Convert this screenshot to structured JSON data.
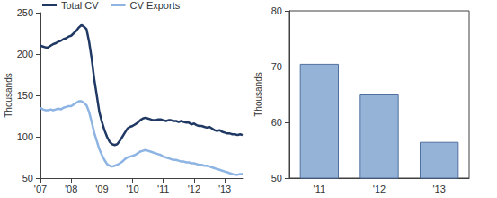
{
  "chart_data": [
    {
      "type": "line",
      "ylabel": "Thousands",
      "categories": [
        "'07",
        null,
        null,
        null,
        null,
        null,
        null,
        null,
        null,
        null,
        null,
        null,
        "'08",
        null,
        null,
        null,
        null,
        null,
        null,
        null,
        null,
        null,
        null,
        null,
        "'09",
        null,
        null,
        null,
        null,
        null,
        null,
        null,
        null,
        null,
        null,
        null,
        "'10",
        null,
        null,
        null,
        null,
        null,
        null,
        null,
        null,
        null,
        null,
        null,
        "'11",
        null,
        null,
        null,
        null,
        null,
        null,
        null,
        null,
        null,
        null,
        null,
        "'12",
        null,
        null,
        null,
        null,
        null,
        null,
        null,
        null,
        null,
        null,
        null,
        "'13",
        null,
        null,
        null,
        null,
        null,
        null,
        null
      ],
      "series": [
        {
          "name": "Total CV",
          "color": "#1f3864",
          "values": [
            210,
            209,
            208,
            208,
            210,
            212,
            213,
            215,
            216,
            218,
            219,
            221,
            222,
            225,
            228,
            232,
            235,
            233,
            230,
            215,
            195,
            170,
            150,
            130,
            118,
            108,
            100,
            94,
            91,
            90,
            91,
            95,
            100,
            105,
            110,
            112,
            113,
            115,
            117,
            120,
            122,
            123,
            122,
            121,
            120,
            120,
            121,
            121,
            120,
            119,
            120,
            120,
            119,
            119,
            118,
            119,
            118,
            117,
            117,
            115,
            116,
            114,
            113,
            113,
            112,
            111,
            112,
            110,
            108,
            107,
            108,
            106,
            105,
            104,
            104,
            103,
            103,
            102,
            103,
            102
          ]
        },
        {
          "name": "CV Exports",
          "color": "#8db4e2",
          "values": [
            135,
            133,
            132,
            132,
            133,
            132,
            133,
            134,
            133,
            135,
            136,
            137,
            137,
            139,
            141,
            143,
            143,
            141,
            138,
            130,
            118,
            105,
            95,
            85,
            78,
            72,
            67,
            65,
            64,
            65,
            66,
            68,
            70,
            73,
            75,
            76,
            77,
            78,
            80,
            82,
            83,
            84,
            83,
            82,
            81,
            80,
            79,
            78,
            76,
            75,
            74,
            73,
            72,
            72,
            71,
            70,
            70,
            69,
            69,
            68,
            68,
            67,
            66,
            66,
            65,
            65,
            64,
            63,
            62,
            61,
            60,
            59,
            58,
            57,
            56,
            55,
            54,
            54,
            55,
            55
          ]
        }
      ],
      "ylim": [
        50,
        250
      ],
      "yticks": [
        50,
        100,
        150,
        200,
        250
      ],
      "grid": false,
      "legend": "top-left"
    },
    {
      "type": "bar",
      "ylabel": "Thousands",
      "categories": [
        "'11",
        "'12",
        "'13"
      ],
      "values": [
        70.5,
        65,
        56.5
      ],
      "color": "#95b3d7",
      "ylim": [
        50,
        80
      ],
      "yticks": [
        50,
        60,
        70,
        80
      ],
      "grid": false
    }
  ]
}
